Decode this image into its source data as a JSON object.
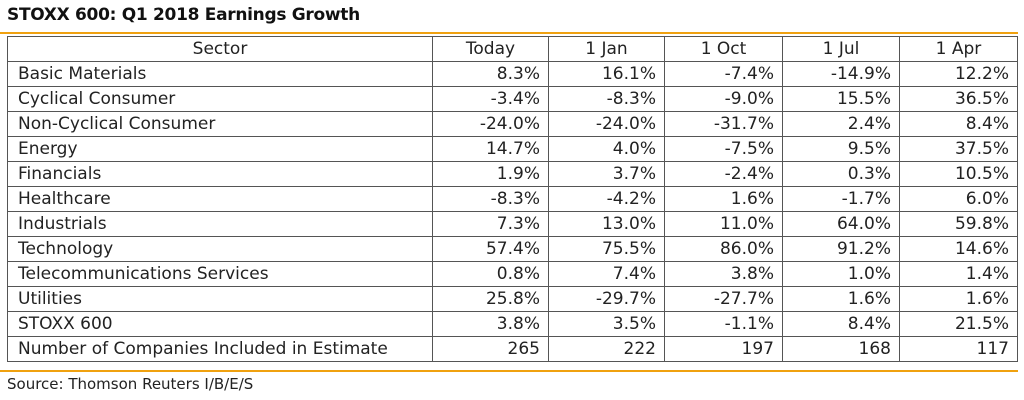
{
  "title": "STOXX 600: Q1 2018 Earnings Growth",
  "colors": {
    "accent_rule": "#f0a10f"
  },
  "table": {
    "headers": [
      "Sector",
      "Today",
      "1 Jan",
      "1 Oct",
      "1 Jul",
      "1 Apr"
    ],
    "rows": [
      [
        "Basic Materials",
        "8.3%",
        "16.1%",
        "-7.4%",
        "-14.9%",
        "12.2%"
      ],
      [
        "Cyclical Consumer",
        "-3.4%",
        "-8.3%",
        "-9.0%",
        "15.5%",
        "36.5%"
      ],
      [
        "Non-Cyclical Consumer",
        "-24.0%",
        "-24.0%",
        "-31.7%",
        "2.4%",
        "8.4%"
      ],
      [
        "Energy",
        "14.7%",
        "4.0%",
        "-7.5%",
        "9.5%",
        "37.5%"
      ],
      [
        "Financials",
        "1.9%",
        "3.7%",
        "-2.4%",
        "0.3%",
        "10.5%"
      ],
      [
        "Healthcare",
        "-8.3%",
        "-4.2%",
        "1.6%",
        "-1.7%",
        "6.0%"
      ],
      [
        "Industrials",
        "7.3%",
        "13.0%",
        "11.0%",
        "64.0%",
        "59.8%"
      ],
      [
        "Technology",
        "57.4%",
        "75.5%",
        "86.0%",
        "91.2%",
        "14.6%"
      ],
      [
        "Telecommunications Services",
        "0.8%",
        "7.4%",
        "3.8%",
        "1.0%",
        "1.4%"
      ],
      [
        "Utilities",
        "25.8%",
        "-29.7%",
        "-27.7%",
        "1.6%",
        "1.6%"
      ],
      [
        "STOXX 600",
        "3.8%",
        "3.5%",
        "-1.1%",
        "8.4%",
        "21.5%"
      ],
      [
        "Number of Companies Included in Estimate",
        "265",
        "222",
        "197",
        "168",
        "117"
      ]
    ]
  },
  "source": "Source: Thomson Reuters I/B/E/S"
}
